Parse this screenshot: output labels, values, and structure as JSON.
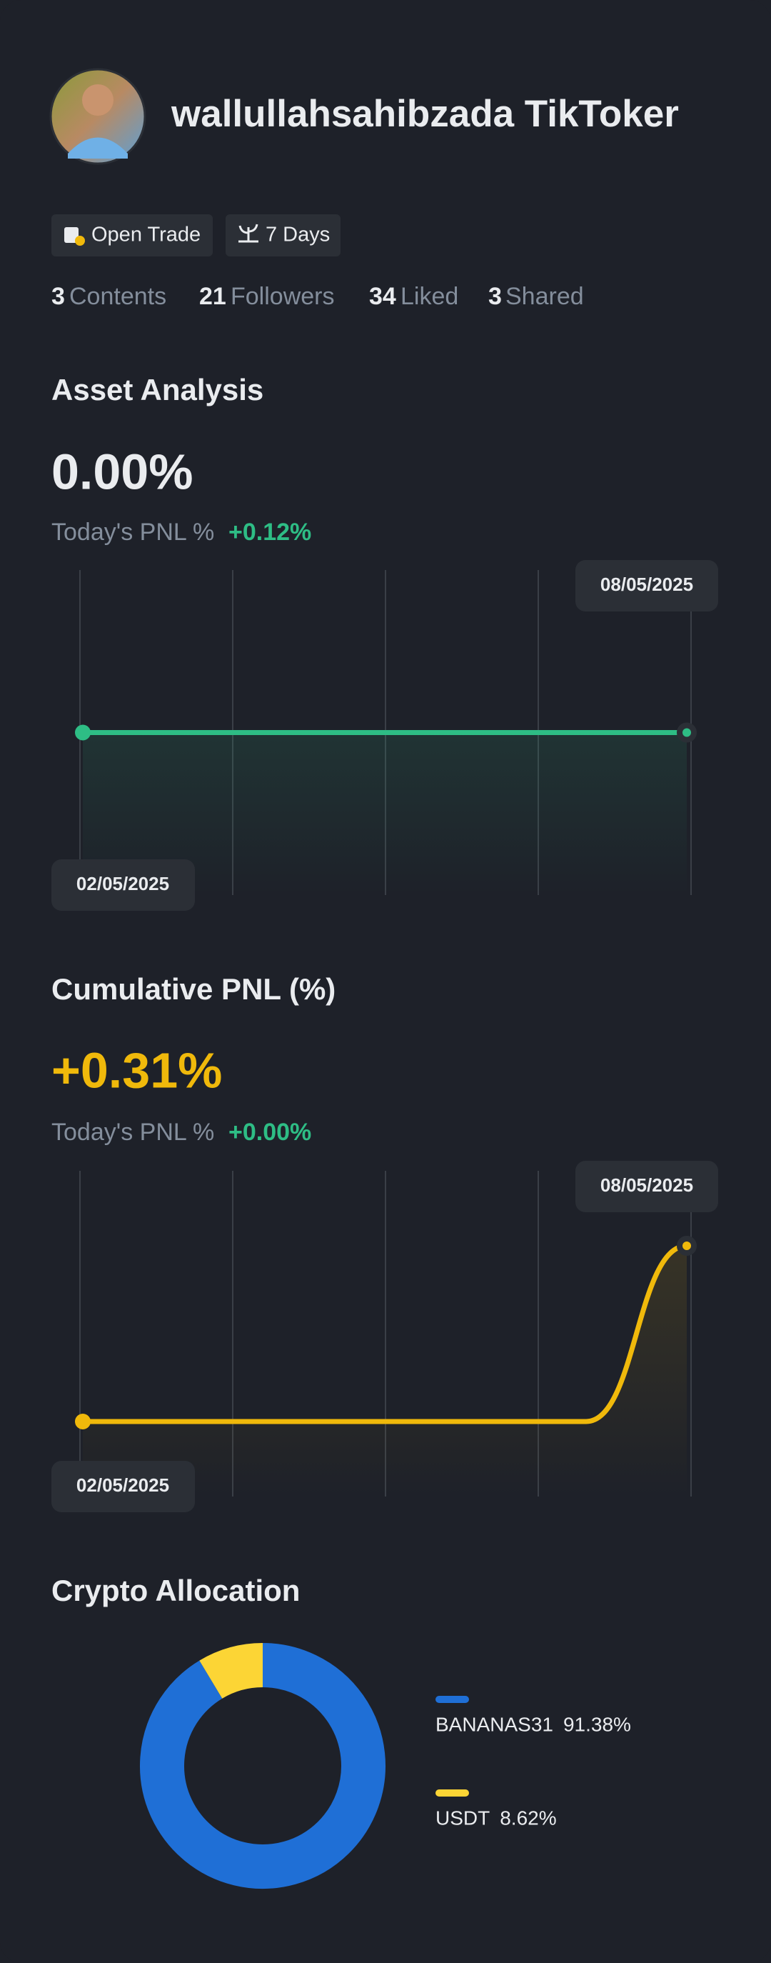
{
  "profile": {
    "name": "wallullahsahibzada TikToker",
    "tags": [
      "Open Trade",
      "7 Days"
    ],
    "stats": [
      {
        "value": 3,
        "label": "Contents"
      },
      {
        "value": 21,
        "label": "Followers"
      },
      {
        "value": 34,
        "label": "Liked"
      },
      {
        "value": 3,
        "label": "Shared"
      }
    ]
  },
  "chart_data": [
    {
      "type": "line",
      "title": "Asset Analysis",
      "headline": "0.00%",
      "today_label": "Today's PNL %",
      "today_value": "+0.12%",
      "x": [
        "02/05/2025",
        null,
        null,
        null,
        null,
        null,
        "08/05/2025"
      ],
      "series": [
        {
          "color": "#2ebd85",
          "values": [
            0,
            0,
            0,
            0,
            0,
            0,
            0
          ]
        }
      ]
    },
    {
      "type": "line",
      "title": "Cumulative PNL (%)",
      "headline": "+0.31%",
      "today_label": "Today's PNL %",
      "today_value": "+0.00%",
      "x": [
        "02/05/2025",
        null,
        null,
        null,
        null,
        null,
        "08/05/2025"
      ],
      "series": [
        {
          "color": "#f0b90b",
          "values": [
            0,
            0,
            0,
            0,
            0,
            0,
            0.31
          ]
        }
      ]
    },
    {
      "type": "pie",
      "title": "Crypto Allocation",
      "categories": [
        "BANANAS31",
        "USDT"
      ],
      "values": [
        91.38,
        8.62
      ],
      "value_labels": [
        "91.38%",
        "8.62%"
      ],
      "colors": [
        "#1f6fd6",
        "#fcd535"
      ]
    }
  ]
}
